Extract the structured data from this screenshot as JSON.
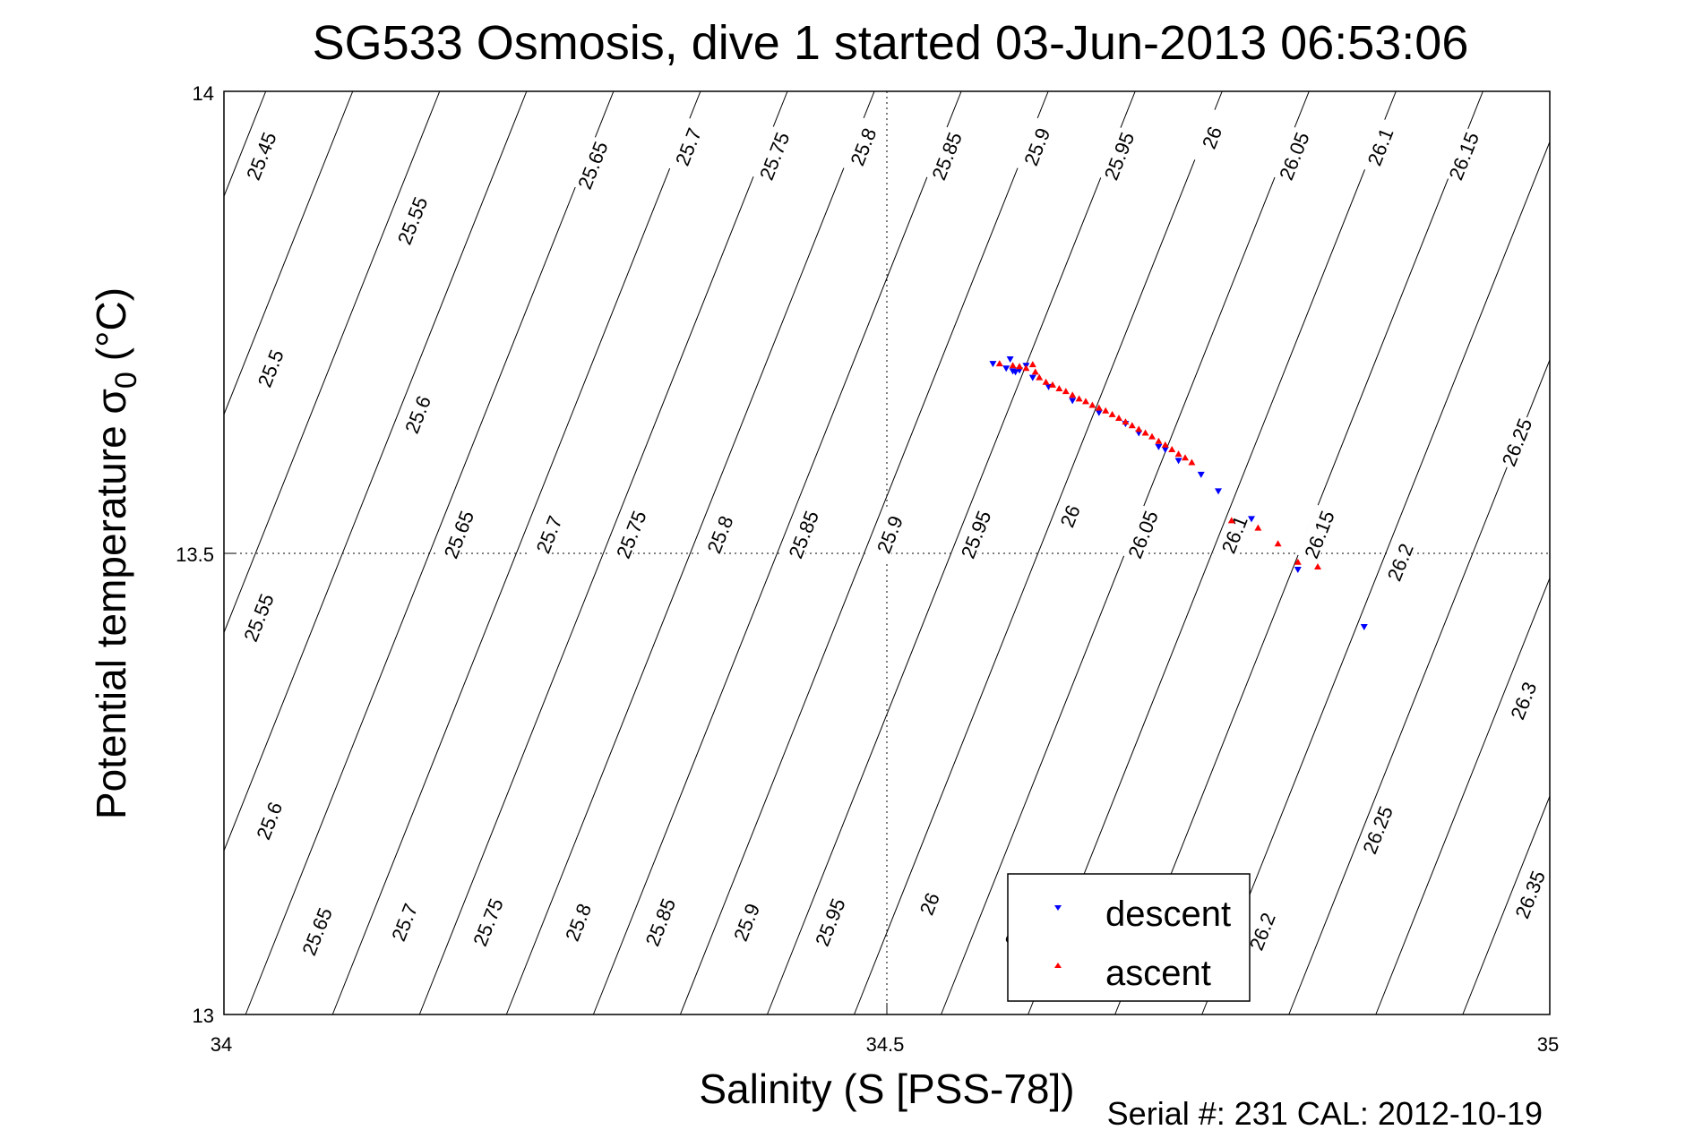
{
  "chart_data": {
    "type": "scatter",
    "title": "SG533 Osmosis, dive 1 started 03-Jun-2013 06:53:06",
    "xlabel": "Salinity (S [PSS-78])",
    "ylabel_main": "Potential temperature σ",
    "ylabel_sub": "0",
    "ylabel_unit": "(°C)",
    "xlim": [
      34,
      35
    ],
    "ylim": [
      13,
      14
    ],
    "x_ticks": [
      "34",
      "34.5",
      "35"
    ],
    "y_ticks": [
      "13",
      "13.5",
      "14"
    ],
    "grid": true,
    "legend_position": "lower-middle",
    "footer": "Serial #: 231  CAL: 2012-10-19",
    "contour_values": [
      25.45,
      25.5,
      25.55,
      25.6,
      25.65,
      25.7,
      25.75,
      25.8,
      25.85,
      25.9,
      25.95,
      26,
      26.05,
      26.1,
      26.15,
      26.2,
      26.25,
      26.3,
      26.35
    ],
    "contour_labels": [
      {
        "text": "25.45",
        "x": 34.028,
        "y": 13.93
      },
      {
        "text": "25.5",
        "x": 34.035,
        "y": 13.7
      },
      {
        "text": "25.55",
        "x": 34.026,
        "y": 13.43
      },
      {
        "text": "25.6",
        "x": 34.034,
        "y": 13.21
      },
      {
        "text": "25.65",
        "x": 34.07,
        "y": 13.09
      },
      {
        "text": "25.55",
        "x": 34.142,
        "y": 13.86
      },
      {
        "text": "25.6",
        "x": 34.146,
        "y": 13.65
      },
      {
        "text": "25.65",
        "x": 34.177,
        "y": 13.52
      },
      {
        "text": "25.7",
        "x": 34.136,
        "y": 13.1
      },
      {
        "text": "25.75",
        "x": 34.199,
        "y": 13.1
      },
      {
        "text": "25.7",
        "x": 34.245,
        "y": 13.52
      },
      {
        "text": "25.8",
        "x": 34.267,
        "y": 13.1
      },
      {
        "text": "25.65",
        "x": 34.278,
        "y": 13.92
      },
      {
        "text": "25.75",
        "x": 34.307,
        "y": 13.52
      },
      {
        "text": "25.85",
        "x": 34.329,
        "y": 13.1
      },
      {
        "text": "25.7",
        "x": 34.35,
        "y": 13.94
      },
      {
        "text": "25.8",
        "x": 34.374,
        "y": 13.52
      },
      {
        "text": "25.9",
        "x": 34.394,
        "y": 13.1
      },
      {
        "text": "25.75",
        "x": 34.415,
        "y": 13.93
      },
      {
        "text": "25.85",
        "x": 34.437,
        "y": 13.52
      },
      {
        "text": "25.95",
        "x": 34.457,
        "y": 13.1
      },
      {
        "text": "25.8",
        "x": 34.482,
        "y": 13.94
      },
      {
        "text": "25.9",
        "x": 34.502,
        "y": 13.52
      },
      {
        "text": "26",
        "x": 34.532,
        "y": 13.12
      },
      {
        "text": "25.85",
        "x": 34.545,
        "y": 13.93
      },
      {
        "text": "25.95",
        "x": 34.567,
        "y": 13.52
      },
      {
        "text": "26.05",
        "x": 34.6,
        "y": 13.1
      },
      {
        "text": "25.9",
        "x": 34.613,
        "y": 13.94
      },
      {
        "text": "26",
        "x": 34.638,
        "y": 13.54
      },
      {
        "text": "25.95",
        "x": 34.675,
        "y": 13.93
      },
      {
        "text": "26.05",
        "x": 34.693,
        "y": 13.52
      },
      {
        "text": "26",
        "x": 34.745,
        "y": 13.95
      },
      {
        "text": "26.1",
        "x": 34.762,
        "y": 13.52
      },
      {
        "text": "26.2",
        "x": 34.783,
        "y": 13.09
      },
      {
        "text": "26.05",
        "x": 34.807,
        "y": 13.93
      },
      {
        "text": "26.15",
        "x": 34.826,
        "y": 13.52
      },
      {
        "text": "26.1",
        "x": 34.872,
        "y": 13.94
      },
      {
        "text": "26.2",
        "x": 34.887,
        "y": 13.49
      },
      {
        "text": "26.25",
        "x": 34.87,
        "y": 13.2
      },
      {
        "text": "26.15",
        "x": 34.935,
        "y": 13.93
      },
      {
        "text": "26.25",
        "x": 34.975,
        "y": 13.62
      },
      {
        "text": "26.3",
        "x": 34.98,
        "y": 13.34
      },
      {
        "text": "26.35",
        "x": 34.985,
        "y": 13.13
      }
    ],
    "series": [
      {
        "name": "descent",
        "color": "#0000ff",
        "marker": "triangle-down",
        "points": [
          [
            34.58,
            13.705
          ],
          [
            34.59,
            13.7
          ],
          [
            34.593,
            13.71
          ],
          [
            34.595,
            13.697
          ],
          [
            34.597,
            13.696
          ],
          [
            34.6,
            13.698
          ],
          [
            34.605,
            13.703
          ],
          [
            34.61,
            13.69
          ],
          [
            34.622,
            13.68
          ],
          [
            34.64,
            13.665
          ],
          [
            34.66,
            13.652
          ],
          [
            34.68,
            13.64
          ],
          [
            34.69,
            13.63
          ],
          [
            34.705,
            13.615
          ],
          [
            34.71,
            13.612
          ],
          [
            34.72,
            13.6
          ],
          [
            34.737,
            13.585
          ],
          [
            34.75,
            13.567
          ],
          [
            34.775,
            13.537
          ],
          [
            34.81,
            13.482
          ],
          [
            34.86,
            13.42
          ]
        ]
      },
      {
        "name": "ascent",
        "color": "#ff0000",
        "marker": "triangle-up",
        "points": [
          [
            34.585,
            13.705
          ],
          [
            34.595,
            13.703
          ],
          [
            34.6,
            13.702
          ],
          [
            34.605,
            13.7
          ],
          [
            34.61,
            13.704
          ],
          [
            34.612,
            13.696
          ],
          [
            34.615,
            13.69
          ],
          [
            34.62,
            13.685
          ],
          [
            34.625,
            13.682
          ],
          [
            34.63,
            13.678
          ],
          [
            34.635,
            13.675
          ],
          [
            34.64,
            13.671
          ],
          [
            34.645,
            13.667
          ],
          [
            34.65,
            13.664
          ],
          [
            34.655,
            13.66
          ],
          [
            34.66,
            13.657
          ],
          [
            34.665,
            13.654
          ],
          [
            34.67,
            13.65
          ],
          [
            34.675,
            13.646
          ],
          [
            34.68,
            13.642
          ],
          [
            34.685,
            13.638
          ],
          [
            34.69,
            13.634
          ],
          [
            34.695,
            13.63
          ],
          [
            34.7,
            13.626
          ],
          [
            34.705,
            13.621
          ],
          [
            34.71,
            13.617
          ],
          [
            34.715,
            13.612
          ],
          [
            34.72,
            13.607
          ],
          [
            34.725,
            13.603
          ],
          [
            34.73,
            13.598
          ],
          [
            34.76,
            13.535
          ],
          [
            34.78,
            13.527
          ],
          [
            34.795,
            13.51
          ],
          [
            34.81,
            13.49
          ],
          [
            34.825,
            13.485
          ]
        ]
      }
    ]
  }
}
